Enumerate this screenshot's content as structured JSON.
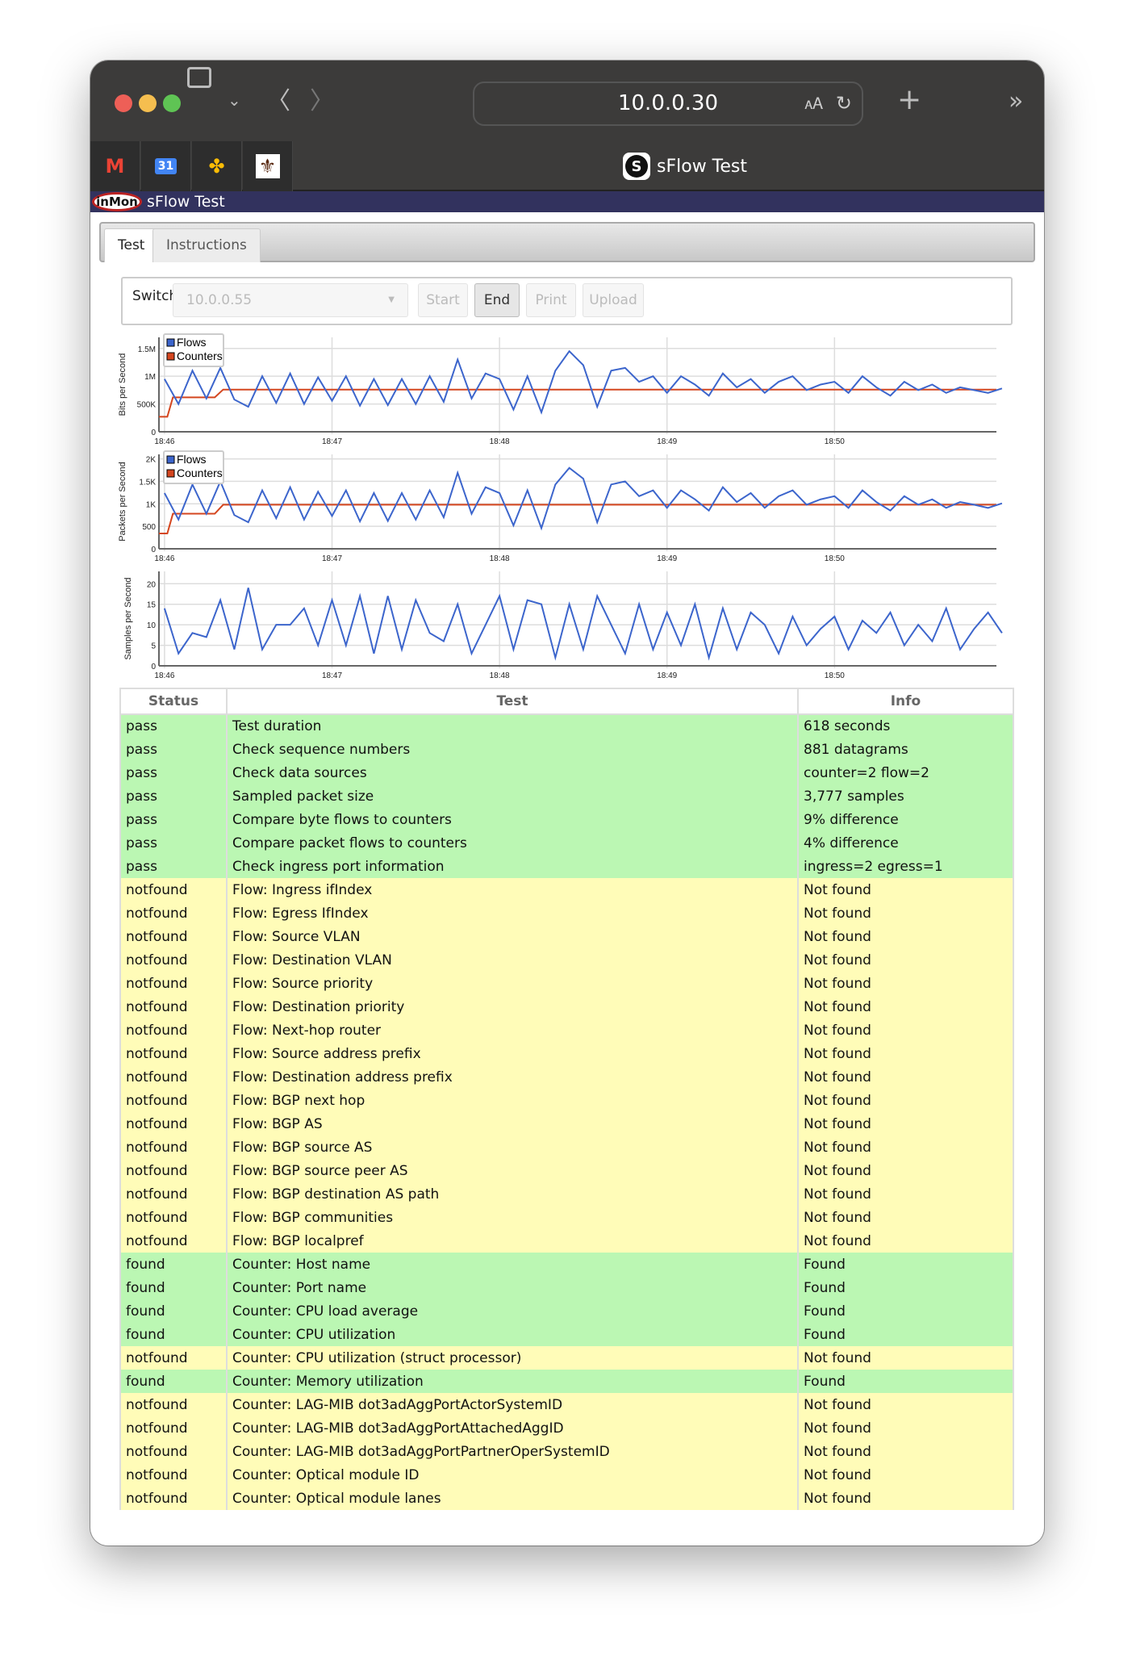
{
  "browser": {
    "url": "10.0.0.30",
    "tab_title": "sFlow Test",
    "tab_icon_letter": "S",
    "pinned_tabs": [
      "gmail-icon",
      "calendar-icon",
      "photos-icon",
      "fleur-de-lis-icon"
    ],
    "calendar_day": "31"
  },
  "app": {
    "logo": "inMon",
    "title": "sFlow Test",
    "tabs": [
      {
        "label": "Test"
      },
      {
        "label": "Instructions"
      }
    ]
  },
  "controls": {
    "switch_label": "Switch",
    "switch_value": "10.0.0.55",
    "buttons": {
      "start": "Start",
      "end": "End",
      "print": "Print",
      "upload": "Upload"
    }
  },
  "colors": {
    "flows": "#3c65cc",
    "counters": "#d4461f",
    "pass": "#bbf7b3",
    "notfound": "#fffcb8"
  },
  "chart_data": [
    {
      "type": "line",
      "ylabel": "Bits per Second",
      "ylim": [
        0,
        1700000
      ],
      "yticks": [
        {
          "v": 0,
          "label": "0"
        },
        {
          "v": 500000,
          "label": "500K"
        },
        {
          "v": 1000000,
          "label": "1M"
        },
        {
          "v": 1500000,
          "label": "1.5M"
        }
      ],
      "xlim": [
        "18:45:58",
        "18:50:58"
      ],
      "xticks": [
        "18:46",
        "18:47",
        "18:48",
        "18:49",
        "18:50"
      ],
      "grid": true,
      "legend": "top-left",
      "series": [
        {
          "name": "Flows",
          "color": "#3c65cc",
          "x_start": "18:46:00",
          "x_step_seconds": 5,
          "values": [
            950000,
            500000,
            1100000,
            600000,
            1150000,
            580000,
            450000,
            1000000,
            520000,
            1050000,
            500000,
            980000,
            560000,
            1000000,
            470000,
            950000,
            480000,
            950000,
            500000,
            1000000,
            540000,
            1300000,
            600000,
            1050000,
            950000,
            400000,
            1000000,
            350000,
            1100000,
            1450000,
            1200000,
            450000,
            1100000,
            1150000,
            900000,
            1000000,
            700000,
            1000000,
            850000,
            650000,
            1050000,
            800000,
            950000,
            700000,
            900000,
            1000000,
            750000,
            850000,
            900000,
            700000,
            1000000,
            800000,
            650000,
            900000,
            750000,
            850000,
            700000,
            800000,
            750000,
            700000,
            780000
          ]
        },
        {
          "name": "Counters",
          "color": "#d4461f",
          "points": [
            [
              "18:45:58",
              270000
            ],
            [
              "18:46:01",
              270000
            ],
            [
              "18:46:03",
              620000
            ],
            [
              "18:46:18",
              620000
            ],
            [
              "18:46:21",
              760000
            ],
            [
              "18:50:58",
              760000
            ]
          ]
        }
      ]
    },
    {
      "type": "line",
      "ylabel": "Packets per Second",
      "ylim": [
        0,
        2100
      ],
      "yticks": [
        {
          "v": 0,
          "label": "0"
        },
        {
          "v": 500,
          "label": "500"
        },
        {
          "v": 1000,
          "label": "1K"
        },
        {
          "v": 1500,
          "label": "1.5K"
        },
        {
          "v": 2000,
          "label": "2K"
        }
      ],
      "xlim": [
        "18:45:58",
        "18:50:58"
      ],
      "xticks": [
        "18:46",
        "18:47",
        "18:48",
        "18:49",
        "18:50"
      ],
      "grid": true,
      "legend": "top-left",
      "series": [
        {
          "name": "Flows",
          "color": "#3c65cc",
          "x_start": "18:46:00",
          "x_step_seconds": 5,
          "values": [
            1240,
            650,
            1430,
            780,
            1500,
            750,
            590,
            1300,
            680,
            1370,
            650,
            1270,
            730,
            1300,
            610,
            1240,
            620,
            1240,
            650,
            1300,
            700,
            1690,
            780,
            1370,
            1240,
            520,
            1300,
            460,
            1430,
            1800,
            1560,
            590,
            1430,
            1500,
            1170,
            1300,
            910,
            1300,
            1100,
            850,
            1370,
            1040,
            1240,
            910,
            1170,
            1300,
            980,
            1100,
            1170,
            910,
            1300,
            1040,
            850,
            1170,
            980,
            1100,
            910,
            1040,
            980,
            910,
            1010
          ]
        },
        {
          "name": "Counters",
          "color": "#d4461f",
          "points": [
            [
              "18:45:58",
              340
            ],
            [
              "18:46:01",
              340
            ],
            [
              "18:46:03",
              780
            ],
            [
              "18:46:18",
              780
            ],
            [
              "18:46:21",
              980
            ],
            [
              "18:50:58",
              980
            ]
          ]
        }
      ]
    },
    {
      "type": "line",
      "ylabel": "Samples per Second",
      "ylim": [
        0,
        23
      ],
      "yticks": [
        {
          "v": 0,
          "label": "0"
        },
        {
          "v": 5,
          "label": "5"
        },
        {
          "v": 10,
          "label": "10"
        },
        {
          "v": 15,
          "label": "15"
        },
        {
          "v": 20,
          "label": "20"
        }
      ],
      "xlim": [
        "18:45:58",
        "18:50:58"
      ],
      "xticks": [
        "18:46",
        "18:47",
        "18:48",
        "18:49",
        "18:50"
      ],
      "grid": true,
      "series": [
        {
          "color": "#3c65cc",
          "x_start": "18:46:00",
          "x_step_seconds": 5,
          "values": [
            14,
            3,
            8,
            7,
            16,
            4,
            19,
            4,
            10,
            10,
            14,
            5,
            16,
            5,
            17,
            3,
            17,
            4,
            16,
            8,
            6,
            15,
            3,
            10,
            17,
            4,
            16,
            15,
            2,
            15,
            4,
            17,
            10,
            3,
            15,
            4,
            13,
            5,
            15,
            2,
            14,
            4,
            13,
            10,
            3,
            12,
            5,
            9,
            12,
            4,
            11,
            8,
            13,
            5,
            10,
            6,
            14,
            4,
            9,
            13,
            8
          ]
        }
      ]
    }
  ],
  "table": {
    "headers": [
      "Status",
      "Test",
      "Info"
    ],
    "rows": [
      [
        "pass",
        "Test duration",
        "618 seconds"
      ],
      [
        "pass",
        "Check sequence numbers",
        "881 datagrams"
      ],
      [
        "pass",
        "Check data sources",
        "counter=2 flow=2"
      ],
      [
        "pass",
        "Sampled packet size",
        "3,777 samples"
      ],
      [
        "pass",
        "Compare byte flows to counters",
        "9% difference"
      ],
      [
        "pass",
        "Compare packet flows to counters",
        "4% difference"
      ],
      [
        "pass",
        "Check ingress port information",
        "ingress=2 egress=1"
      ],
      [
        "notfound",
        "Flow: Ingress ifIndex",
        "Not found"
      ],
      [
        "notfound",
        "Flow: Egress IfIndex",
        "Not found"
      ],
      [
        "notfound",
        "Flow: Source VLAN",
        "Not found"
      ],
      [
        "notfound",
        "Flow: Destination VLAN",
        "Not found"
      ],
      [
        "notfound",
        "Flow: Source priority",
        "Not found"
      ],
      [
        "notfound",
        "Flow: Destination priority",
        "Not found"
      ],
      [
        "notfound",
        "Flow: Next-hop router",
        "Not found"
      ],
      [
        "notfound",
        "Flow: Source address prefix",
        "Not found"
      ],
      [
        "notfound",
        "Flow: Destination address prefix",
        "Not found"
      ],
      [
        "notfound",
        "Flow: BGP next hop",
        "Not found"
      ],
      [
        "notfound",
        "Flow: BGP AS",
        "Not found"
      ],
      [
        "notfound",
        "Flow: BGP source AS",
        "Not found"
      ],
      [
        "notfound",
        "Flow: BGP source peer AS",
        "Not found"
      ],
      [
        "notfound",
        "Flow: BGP destination AS path",
        "Not found"
      ],
      [
        "notfound",
        "Flow: BGP communities",
        "Not found"
      ],
      [
        "notfound",
        "Flow: BGP localpref",
        "Not found"
      ],
      [
        "found",
        "Counter: Host name",
        "Found"
      ],
      [
        "found",
        "Counter: Port name",
        "Found"
      ],
      [
        "found",
        "Counter: CPU load average",
        "Found"
      ],
      [
        "found",
        "Counter: CPU utilization",
        "Found"
      ],
      [
        "notfound",
        "Counter: CPU utilization (struct processor)",
        "Not found"
      ],
      [
        "found",
        "Counter: Memory utilization",
        "Found"
      ],
      [
        "notfound",
        "Counter: LAG-MIB dot3adAggPortActorSystemID",
        "Not found"
      ],
      [
        "notfound",
        "Counter: LAG-MIB dot3adAggPortAttachedAggID",
        "Not found"
      ],
      [
        "notfound",
        "Counter: LAG-MIB dot3adAggPortPartnerOperSystemID",
        "Not found"
      ],
      [
        "notfound",
        "Counter: Optical module ID",
        "Not found"
      ],
      [
        "notfound",
        "Counter: Optical module lanes",
        "Not found"
      ]
    ]
  }
}
